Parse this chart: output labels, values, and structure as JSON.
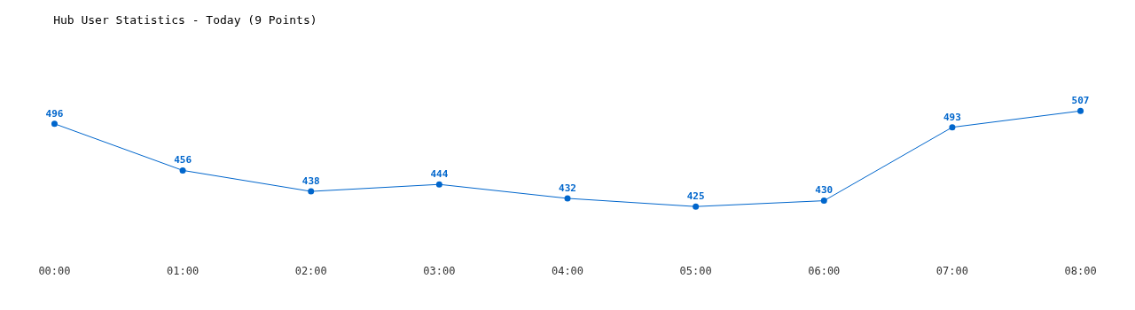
{
  "chart_data": {
    "type": "line",
    "title": "Hub User Statistics - Today (9 Points)",
    "categories": [
      "00:00",
      "01:00",
      "02:00",
      "03:00",
      "04:00",
      "05:00",
      "06:00",
      "07:00",
      "08:00"
    ],
    "series": [
      {
        "color": "#0066cc",
        "values": [
          496,
          456,
          438,
          444,
          432,
          425,
          430,
          493,
          507
        ]
      }
    ],
    "data_labels": true,
    "marker": "circle",
    "line_style": "solid",
    "legend": false
  }
}
